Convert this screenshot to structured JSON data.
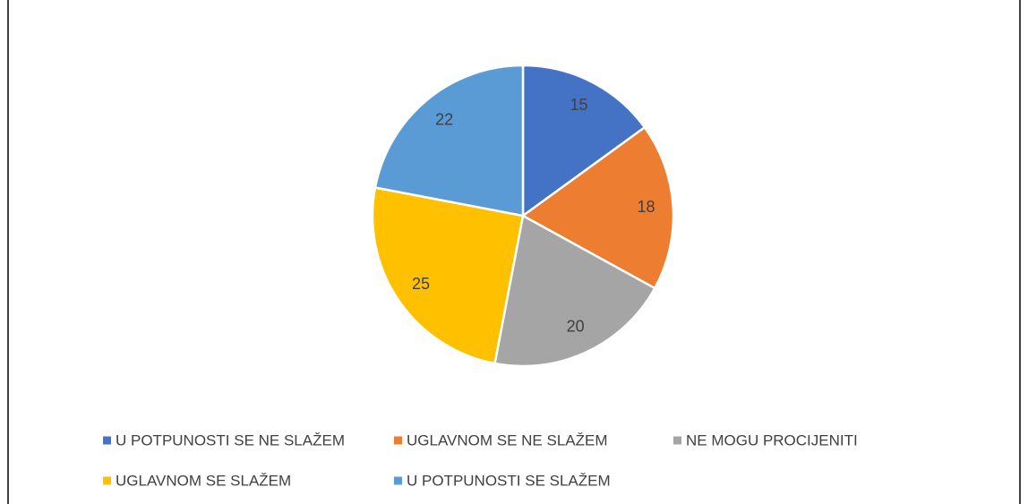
{
  "chart_data": {
    "type": "pie",
    "categories": [
      "U POTPUNOSTI SE NE SLAŽEM",
      "UGLAVNOM SE NE SLAŽEM",
      "NE MOGU PROCIJENITI",
      "UGLAVNOM SE SLAŽEM",
      "U POTPUNOSTI SE SLAŽEM"
    ],
    "values": [
      15,
      18,
      20,
      25,
      22
    ],
    "colors": [
      "#4472c4",
      "#ed7d31",
      "#a5a5a5",
      "#ffc000",
      "#5b9bd5"
    ],
    "legend": "bottom"
  }
}
